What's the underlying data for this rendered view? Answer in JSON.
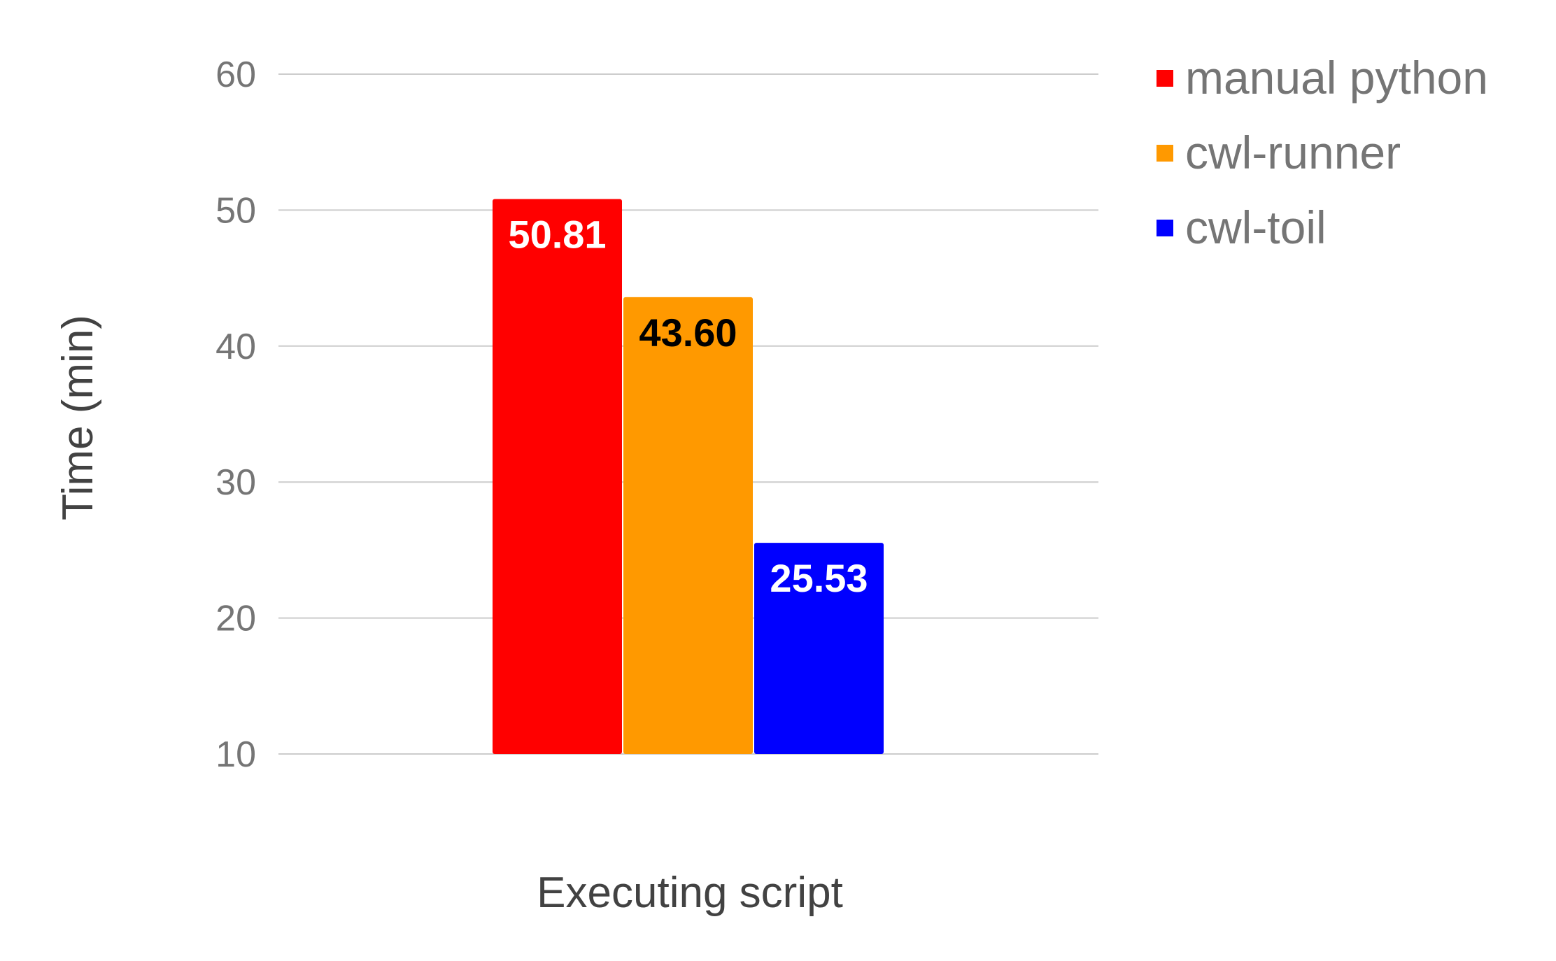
{
  "chart_data": {
    "type": "bar",
    "categories": [
      "Executing script"
    ],
    "series": [
      {
        "name": "manual python",
        "values": [
          50.81
        ],
        "label": "50.81",
        "color": "#ff0000",
        "label_color": "#ffffff"
      },
      {
        "name": "cwl-runner",
        "values": [
          43.6
        ],
        "label": "43.60",
        "color": "#ff9900",
        "label_color": "#000000"
      },
      {
        "name": "cwl-toil",
        "values": [
          25.53
        ],
        "label": "25.53",
        "color": "#0000ff",
        "label_color": "#ffffff"
      }
    ],
    "xlabel": "Executing script",
    "ylabel": "Time (min)",
    "ylim": [
      10,
      60
    ],
    "yticks": [
      "10",
      "20",
      "30",
      "40",
      "50",
      "60"
    ],
    "grid": true,
    "legend_position": "top-right"
  }
}
